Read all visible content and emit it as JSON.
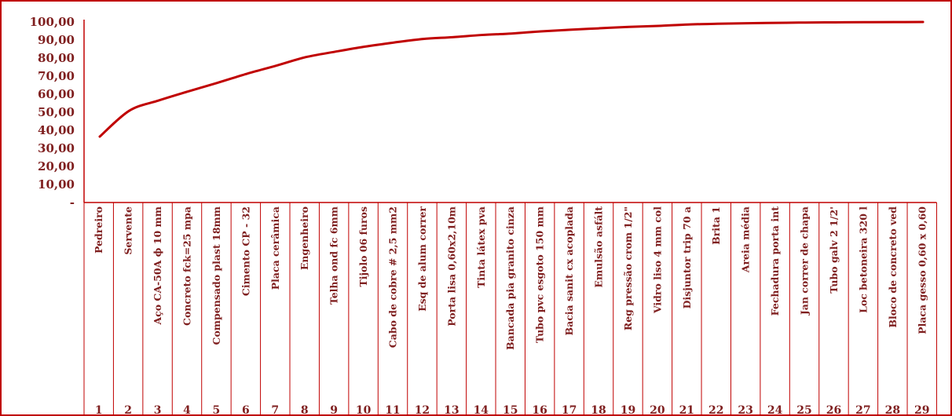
{
  "chart_data": {
    "type": "line",
    "title": "",
    "xlabel": "",
    "ylabel": "",
    "ylim": [
      0,
      100
    ],
    "y_ticks": [
      "-",
      "10,00",
      "20,00",
      "30,00",
      "40,00",
      "50,00",
      "60,00",
      "70,00",
      "80,00",
      "90,00",
      "100,00"
    ],
    "grid": false,
    "legend": "none",
    "line_color": "#c00000",
    "text_color": "#7f1f1f",
    "categories": [
      "Pedreiro",
      "Servente",
      "Aço CA-50A ϕ 10 mm",
      "Concreto fck=25 mpa",
      "Compensado plast 18mm",
      "Cimento CP - 32",
      "Placa cerâmica",
      "Engenheiro",
      "Telha ond fc 6mm",
      "Tijolo 06 furos",
      "Cabo de cobre # 2,5 mm2",
      "Esq de alum correr",
      "Porta lisa 0,60x2,10m",
      "Tinta látex pva",
      "Bancada pia granito cinza",
      "Tubo pvc esgoto 150 mm",
      "Bacia sanit cx acoplada",
      "Emulsão asfált",
      "Reg pressão crom   1/2\"",
      "Vidro liso 4 mm col",
      "Disjuntor trip 70 a",
      "Brita 1",
      "Areia média",
      "Fechadura porta int",
      "Jan correr de chapa",
      "Tubo galv 2 1/2'",
      "Loc betoneira 320 l",
      "Bloco de concreto ved",
      "Placa gesso 0,60 x 0,60"
    ],
    "numbers": [
      "1",
      "2",
      "3",
      "4",
      "5",
      "6",
      "7",
      "8",
      "9",
      "10",
      "11",
      "12",
      "13",
      "14",
      "15",
      "16",
      "17",
      "18",
      "19",
      "20",
      "21",
      "22",
      "23",
      "24",
      "25",
      "26",
      "27",
      "28",
      "29"
    ],
    "values": [
      36.5,
      50.8,
      56.5,
      61.5,
      66.3,
      71.3,
      75.8,
      80.5,
      83.5,
      86.3,
      88.6,
      90.6,
      91.6,
      92.8,
      93.6,
      94.8,
      95.7,
      96.5,
      97.3,
      97.8,
      98.6,
      99.0,
      99.3,
      99.5,
      99.7,
      99.8,
      99.9,
      99.95,
      100.0
    ]
  }
}
